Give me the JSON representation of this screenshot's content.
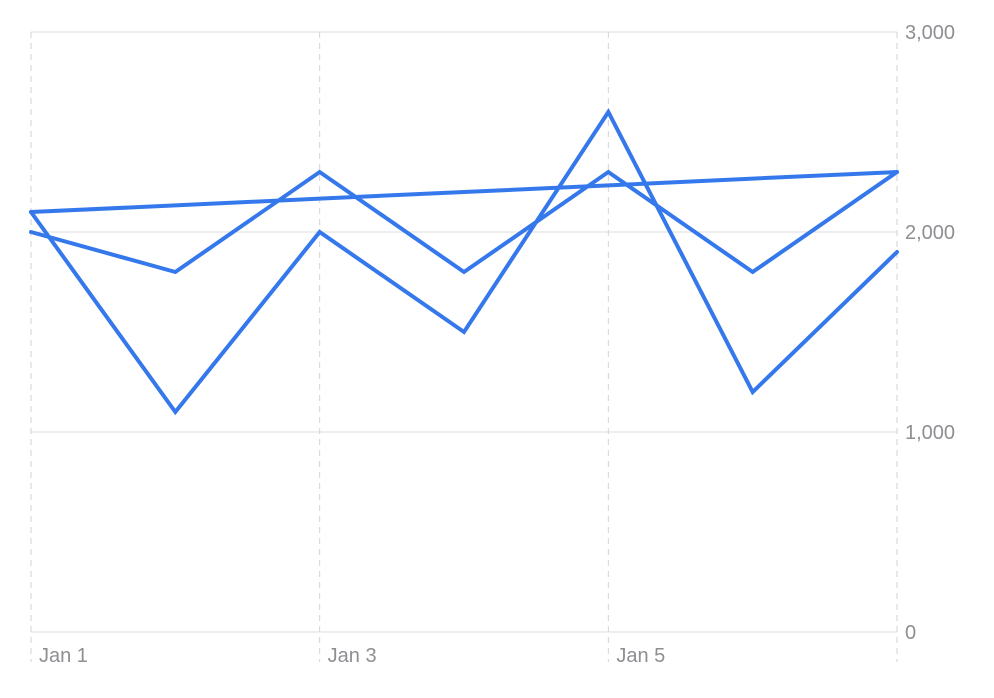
{
  "chart_data": {
    "type": "line",
    "x": [
      0,
      1,
      2,
      3,
      4,
      5,
      6
    ],
    "x_tick_labels": [
      {
        "x": 0,
        "label": "Jan 1"
      },
      {
        "x": 2,
        "label": "Jan 3"
      },
      {
        "x": 4,
        "label": "Jan 5"
      }
    ],
    "y_ticks": [
      {
        "value": 0,
        "label": "0"
      },
      {
        "value": 1000,
        "label": "1,000"
      },
      {
        "value": 2000,
        "label": "2,000"
      },
      {
        "value": 3000,
        "label": "3,000"
      }
    ],
    "ylim": [
      0,
      3000
    ],
    "series": [
      {
        "values": [
          2100,
          2133,
          2167,
          2200,
          2233,
          2267,
          2300
        ]
      },
      {
        "values": [
          2000,
          1800,
          2300,
          1800,
          2300,
          1800,
          2300
        ]
      },
      {
        "values": [
          2100,
          1100,
          2000,
          1500,
          2600,
          1200,
          1900
        ]
      }
    ],
    "line_color": "#3478eb",
    "y_axis_position": "right",
    "grid": true
  }
}
